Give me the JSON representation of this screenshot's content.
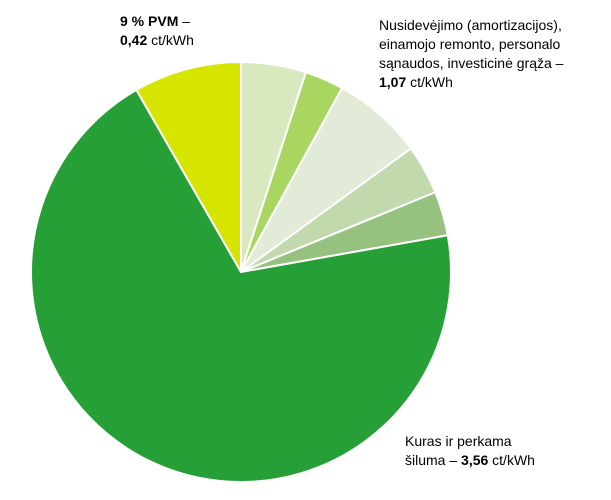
{
  "chart_data": {
    "type": "pie",
    "start_angle_deg": 0,
    "direction": "clockwise",
    "slices": [
      {
        "value": 5.0,
        "color": "#d9e9bf"
      },
      {
        "value": 3.0,
        "color": "#a9d661"
      },
      {
        "value": 7.0,
        "color": "#e1ebd7"
      },
      {
        "value": 3.8,
        "color": "#c2d8ad"
      },
      {
        "value": 3.4,
        "color": "#96c17f"
      },
      {
        "value": 69.5,
        "color": "#269f37"
      },
      {
        "value": 8.3,
        "color": "#d6e500"
      }
    ],
    "labels": {
      "pvm": {
        "bold_line1": "9 % PVM",
        "line1_suffix": " –",
        "bold_line2": "0,42",
        "line2_suffix": " ct/kWh"
      },
      "depreciation": {
        "line1": "Nusidevėjimo (amortizacijos),",
        "line2": "einamojo remonto, personalo",
        "line3": "sąnaudos, investicinė grąža –",
        "bold_value": "1,07",
        "unit": " ct/kWh"
      },
      "fuel": {
        "line1": "Kuras ir perkama",
        "line2_prefix": "šiluma – ",
        "bold_value": "3,56",
        "unit": " ct/kWh"
      }
    }
  }
}
